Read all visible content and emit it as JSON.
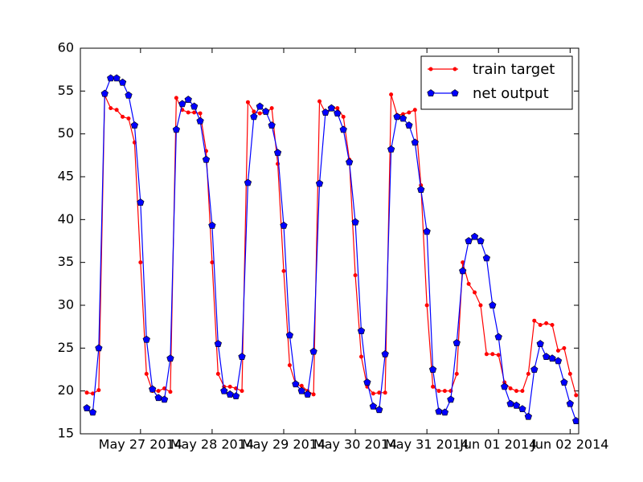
{
  "chart_data": {
    "type": "line",
    "x": [
      26.25,
      26.3333,
      26.4167,
      26.5,
      26.5833,
      26.6667,
      26.75,
      26.8333,
      26.9167,
      27,
      27.0833,
      27.1667,
      27.25,
      27.3333,
      27.4167,
      27.5,
      27.5833,
      27.6667,
      27.75,
      27.8333,
      27.9167,
      28,
      28.0833,
      28.1667,
      28.25,
      28.3333,
      28.4167,
      28.5,
      28.5833,
      28.6667,
      28.75,
      28.8333,
      28.9167,
      29,
      29.0833,
      29.1667,
      29.25,
      29.3333,
      29.4167,
      29.5,
      29.5833,
      29.6667,
      29.75,
      29.8333,
      29.9167,
      30,
      30.0833,
      30.1667,
      30.25,
      30.3333,
      30.4167,
      30.5,
      30.5833,
      30.6667,
      30.75,
      30.8333,
      30.9167,
      31,
      31.0833,
      31.1667,
      31.25,
      31.3333,
      31.4167,
      31.5,
      31.5833,
      31.6667,
      31.75,
      31.8333,
      31.9167,
      32,
      32.0833,
      32.1667,
      32.25,
      32.3333,
      32.4167,
      32.5,
      32.5833,
      32.6667,
      32.75,
      32.8333,
      32.9167,
      33,
      33.0833
    ],
    "series": [
      {
        "name": "train target",
        "color": "#ff0000",
        "marker": "circle",
        "values": [
          19.8,
          19.7,
          20.1,
          54.5,
          53,
          52.8,
          52,
          51.8,
          49,
          35,
          22,
          20,
          20,
          20.3,
          19.9,
          54.2,
          52.8,
          52.5,
          52.5,
          52.4,
          48,
          35,
          22,
          20.5,
          20.5,
          20.3,
          20,
          53.7,
          52.6,
          52.4,
          52.5,
          53,
          46.5,
          34,
          23,
          20.8,
          20.6,
          20,
          19.6,
          53.8,
          52.5,
          52.9,
          53,
          52,
          47,
          33.5,
          24,
          20.5,
          19.7,
          19.8,
          19.8,
          54.6,
          52.2,
          52.3,
          52.5,
          52.8,
          44,
          30,
          20.5,
          20,
          20,
          20,
          22,
          35,
          32.5,
          31.5,
          30,
          24.3,
          24.3,
          24.2,
          21,
          20.3,
          20,
          20,
          22,
          28.2,
          27.7,
          27.9,
          27.7,
          24.7,
          25,
          22,
          19.5
        ]
      },
      {
        "name": "net output",
        "color": "#0000ff",
        "marker": "pentagon",
        "values": [
          18,
          17.5,
          25,
          54.7,
          56.5,
          56.5,
          56,
          54.5,
          51,
          42,
          26,
          20.2,
          19.2,
          19,
          23.8,
          50.5,
          53.5,
          54,
          53.2,
          51.5,
          47,
          39.3,
          25.5,
          20,
          19.6,
          19.4,
          24,
          44.3,
          52,
          53.2,
          52.6,
          51,
          47.8,
          39.3,
          26.5,
          20.8,
          20,
          19.6,
          24.6,
          44.2,
          52.5,
          53,
          52.4,
          50.5,
          46.7,
          39.7,
          27,
          21,
          18.2,
          17.8,
          24.3,
          48.2,
          52,
          51.8,
          51,
          49,
          43.5,
          38.6,
          22.5,
          17.6,
          17.5,
          19,
          25.6,
          34,
          37.5,
          38,
          37.5,
          35.5,
          30,
          26.3,
          20.5,
          18.5,
          18.3,
          17.9,
          17,
          22.5,
          25.5,
          24,
          23.8,
          23.5,
          21,
          18.5,
          16.5
        ]
      }
    ],
    "xlim": [
      26.16,
      33.12
    ],
    "xticks": [
      {
        "value": 27,
        "label": "May 27 2014"
      },
      {
        "value": 28,
        "label": "May 28 2014"
      },
      {
        "value": 29,
        "label": "May 29 2014"
      },
      {
        "value": 30,
        "label": "May 30 2014"
      },
      {
        "value": 31,
        "label": "May 31 2014"
      },
      {
        "value": 32,
        "label": "Jun 01 2014"
      },
      {
        "value": 33,
        "label": "Jun 02 2014"
      }
    ],
    "ylim": [
      15,
      60
    ],
    "yticks": [
      15,
      20,
      25,
      30,
      35,
      40,
      45,
      50,
      55,
      60
    ],
    "legend": "upper right"
  }
}
